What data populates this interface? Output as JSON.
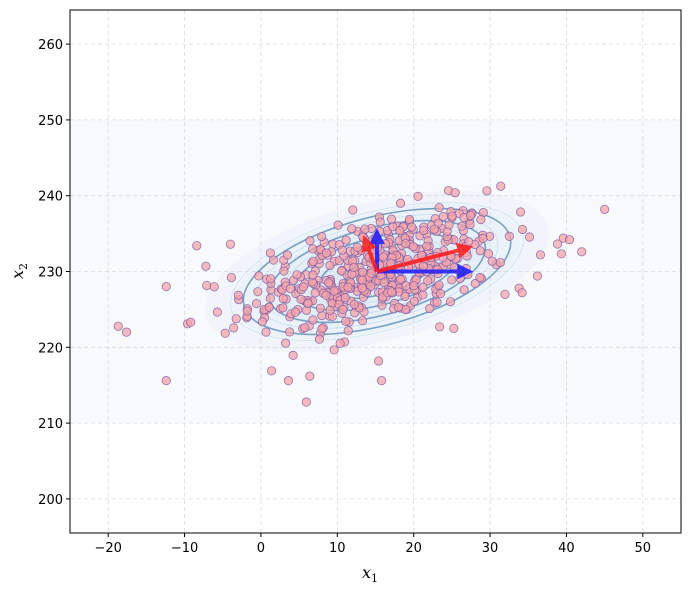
{
  "chart_data": {
    "type": "scatter",
    "title": "",
    "xlabel": "x_1",
    "ylabel": "x_2",
    "xlim": [
      -25,
      55
    ],
    "ylim": [
      195.5,
      264.5
    ],
    "xticks": [
      -20,
      -10,
      0,
      10,
      20,
      30,
      40,
      50
    ],
    "yticks": [
      200,
      210,
      220,
      230,
      240,
      250,
      260
    ],
    "xtick_labels": [
      "−20",
      "−10",
      "0",
      "10",
      "20",
      "30",
      "40",
      "50"
    ],
    "ytick_labels": [
      "200",
      "210",
      "220",
      "230",
      "240",
      "250",
      "260"
    ],
    "grid": true,
    "legend": null,
    "background_band": {
      "y_from": 210,
      "y_to": 250,
      "color": "#f7f9fd"
    },
    "distribution": {
      "mean": [
        15.2,
        230.0
      ],
      "principal_angle_deg": 14.6,
      "sigma_major": 8.6,
      "sigma_minor": 3.4,
      "n_points": 500,
      "point_color": "#f4a3a8",
      "point_edge_color": "#7a5aa8"
    },
    "contours": {
      "color": "#5b8db8",
      "levels_sigma": [
        0.5,
        0.9,
        1.3,
        1.7,
        2.1
      ]
    },
    "outliers": [
      {
        "x": -17.6,
        "y": 222.0
      },
      {
        "x": -12.4,
        "y": 215.6
      },
      {
        "x": -12.4,
        "y": 228.0
      },
      {
        "x": -9.6,
        "y": 223.1
      },
      {
        "x": -9.2,
        "y": 223.3
      },
      {
        "x": -8.4,
        "y": 233.4
      },
      {
        "x": -7.2,
        "y": 230.7
      },
      {
        "x": -4.0,
        "y": 233.6
      },
      {
        "x": 1.4,
        "y": 216.9
      },
      {
        "x": 3.6,
        "y": 215.6
      },
      {
        "x": 6.4,
        "y": 216.2
      },
      {
        "x": 15.4,
        "y": 218.2
      },
      {
        "x": 15.8,
        "y": 215.6
      },
      {
        "x": 23.4,
        "y": 222.7
      },
      {
        "x": 36.2,
        "y": 229.4
      },
      {
        "x": 36.6,
        "y": 232.2
      },
      {
        "x": 39.6,
        "y": 234.4
      },
      {
        "x": 40.4,
        "y": 234.2
      },
      {
        "x": 42.0,
        "y": 232.6
      },
      {
        "x": 45.0,
        "y": 238.2
      },
      {
        "x": 33.8,
        "y": 227.8
      },
      {
        "x": 34.2,
        "y": 227.2
      }
    ],
    "arrows": [
      {
        "name": "axis-x1",
        "color": "#1a1aff",
        "from": [
          15.2,
          230.0
        ],
        "to": [
          27.8,
          230.0
        ]
      },
      {
        "name": "axis-x2",
        "color": "#1a1aff",
        "from": [
          15.2,
          230.0
        ],
        "to": [
          15.2,
          235.7
        ]
      },
      {
        "name": "principal-major",
        "color": "#ff1a1a",
        "from": [
          15.2,
          230.0
        ],
        "to": [
          27.8,
          233.3
        ]
      },
      {
        "name": "principal-minor",
        "color": "#ff1a1a",
        "from": [
          15.2,
          230.0
        ],
        "to": [
          13.4,
          234.8
        ]
      }
    ]
  },
  "axes": {
    "xlabel_main": "x",
    "xlabel_sub": "1",
    "ylabel_main": "x",
    "ylabel_sub": "2"
  }
}
